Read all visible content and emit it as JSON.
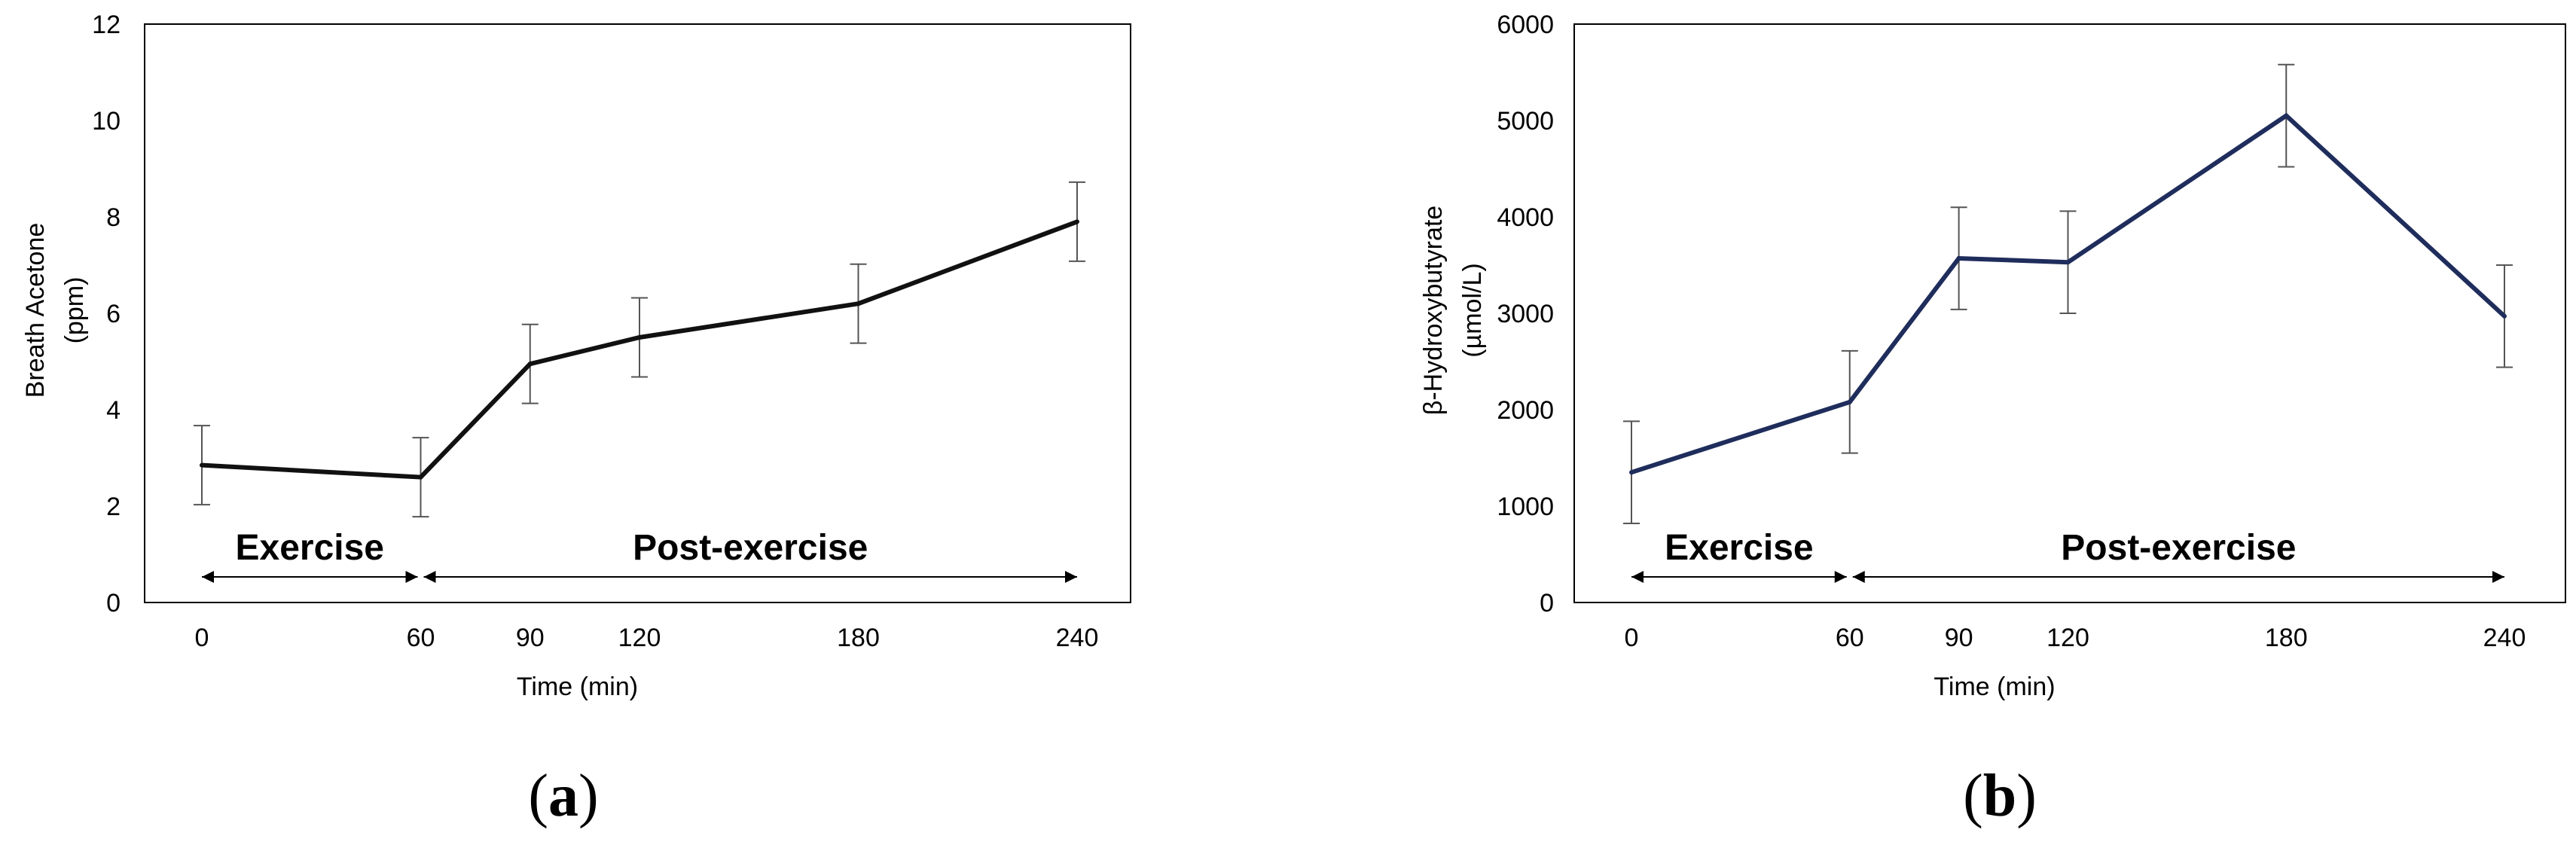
{
  "chart_data": [
    {
      "type": "line",
      "panel_label": "a",
      "xlabel": "Time (min)",
      "ylabel": [
        "Breath Acetone",
        "(ppm)"
      ],
      "x": [
        0,
        60,
        90,
        120,
        180,
        240
      ],
      "xticks": [
        "0",
        "60",
        "90",
        "120",
        "180",
        "240"
      ],
      "ylim": [
        0,
        12
      ],
      "yticks": [
        "0",
        "2",
        "4",
        "6",
        "8",
        "10",
        "12"
      ],
      "grid": false,
      "line_color": "#111111",
      "series": [
        {
          "values": [
            2.85,
            2.6,
            4.95,
            5.5,
            6.2,
            7.9
          ],
          "errors": [
            0.82,
            0.82,
            0.82,
            0.82,
            0.82,
            0.82
          ]
        }
      ],
      "annotations": [
        {
          "text": "Exercise",
          "from": 0,
          "to": 60
        },
        {
          "text": "Post-exercise",
          "from": 60,
          "to": 240
        }
      ]
    },
    {
      "type": "line",
      "panel_label": "b",
      "xlabel": "Time (min)",
      "ylabel": [
        "β-Hydroxybutyrate",
        "(µmol/L)"
      ],
      "x": [
        0,
        60,
        90,
        120,
        180,
        240
      ],
      "xticks": [
        "0",
        "60",
        "90",
        "120",
        "180",
        "240"
      ],
      "ylim": [
        0,
        6000
      ],
      "yticks": [
        "0",
        "1000",
        "2000",
        "3000",
        "4000",
        "5000",
        "6000"
      ],
      "grid": false,
      "line_color": "#1f2d5c",
      "series": [
        {
          "values": [
            1350,
            2080,
            3570,
            3530,
            5050,
            2970
          ],
          "errors": [
            530,
            530,
            530,
            530,
            530,
            530
          ]
        }
      ],
      "annotations": [
        {
          "text": "Exercise",
          "from": 0,
          "to": 60
        },
        {
          "text": "Post-exercise",
          "from": 60,
          "to": 240
        }
      ]
    }
  ]
}
